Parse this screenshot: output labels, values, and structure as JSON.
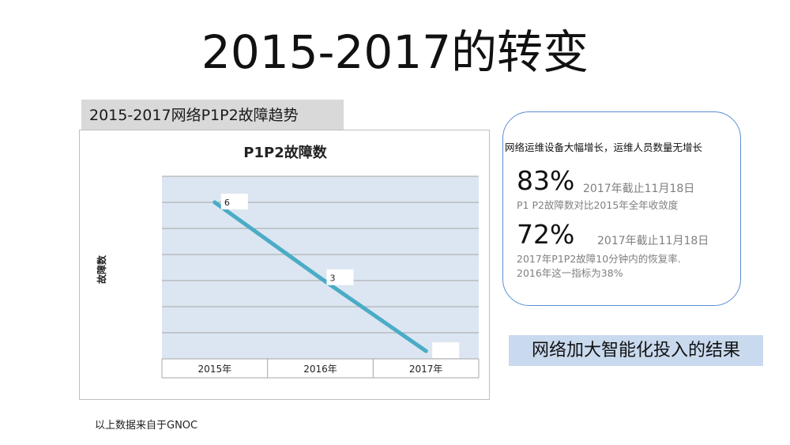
{
  "title": "2015-2017的转变",
  "chart_heading": "2015-2017网络P1P2故障趋势",
  "source_note": "以上数据来自于GNOC",
  "info": {
    "headline": "网络运维设备大幅增长，运维人员数量无增长",
    "stat1": {
      "value": "83%",
      "date": "2017年截止11月18日",
      "description": "P1 P2故障数对比2015年全年收敛度"
    },
    "stat2": {
      "value": "72%",
      "date": "2017年截止11月18日",
      "description_line1": "2017年P1P2故障10分钟内的恢复率.",
      "description_line2": "2016年这一指标为38%"
    }
  },
  "result_label": "网络加大智能化投入的结果",
  "chart_data": {
    "type": "line",
    "title": "P1P2故障数",
    "ylabel": "故障数",
    "categories": [
      "2015年",
      "2016年",
      "2017年"
    ],
    "series": [
      {
        "values": [
          6,
          3.1,
          0.3
        ]
      }
    ],
    "point_labels": [
      "6",
      "3",
      ""
    ],
    "ylim": [
      0,
      7
    ],
    "grid": true,
    "line_color": "#4bacc6",
    "plot_background": "#dce6f2"
  }
}
